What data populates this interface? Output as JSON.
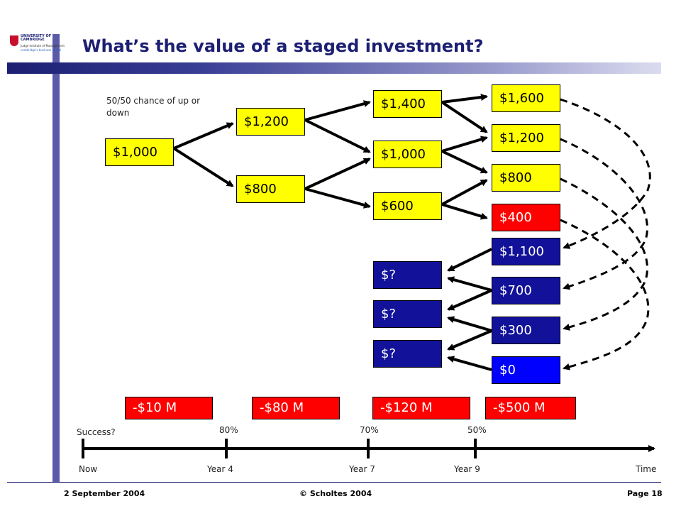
{
  "title": "What’s the value of a staged investment?",
  "logo": {
    "line1": "UNIVERSITY OF",
    "line2": "CAMBRIDGE",
    "line3": "Judge Institute of Management",
    "line4": "cambridge's business school"
  },
  "note": "50/50 chance of up or down",
  "tree": {
    "now": "$1,000",
    "step1": [
      "$1,200",
      "$800"
    ],
    "step2": [
      "$1,400",
      "$1,000",
      "$600"
    ],
    "step3": [
      "$1,600",
      "$1,200",
      "$800",
      "$400"
    ]
  },
  "values": {
    "final": [
      "$1,100",
      "$700",
      "$300",
      "$0"
    ],
    "unknown": [
      "$?",
      "$?",
      "$?"
    ]
  },
  "costs": [
    "-$10 M",
    "-$80 M",
    "-$120 M",
    "-$500 M"
  ],
  "timeline": {
    "success_label": "Success?",
    "probabilities": [
      "80%",
      "70%",
      "50%"
    ],
    "labels": [
      "Now",
      "Year 4",
      "Year 7",
      "Year 9",
      "Time"
    ]
  },
  "footer": {
    "date": "2 September 2004",
    "copyright": "© Scholtes 2004",
    "page": "Page 18"
  },
  "colors": {
    "title": "#1c1f72",
    "accent_bar": "#5a5aa8",
    "up_box": "#ffff00",
    "loss_box": "#ff0000",
    "value_box": "#111199",
    "zero_box": "#0000ff"
  }
}
